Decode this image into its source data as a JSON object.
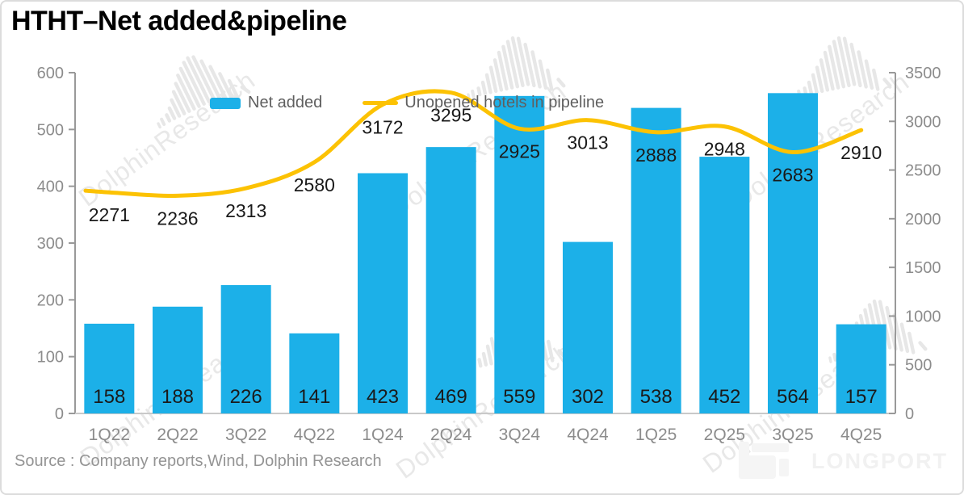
{
  "title": "HTHT–Net added&pipeline",
  "source": "Source : Company reports,Wind, Dolphin Research",
  "watermark_text": "DolphinResearch",
  "brand": "LONGPORT",
  "colors": {
    "bar": "#1CB0E8",
    "line": "#FCC203",
    "axis": "#999999",
    "baseline": "#c9c9c9",
    "label": "#1a1a1a",
    "axis_text": "#8c8c8c"
  },
  "legend": [
    {
      "label": "Net added",
      "type": "bar"
    },
    {
      "label": "Unopened hotels in pipeline",
      "type": "line"
    }
  ],
  "chart_data": {
    "type": "bar+line combo",
    "categories": [
      "1Q22",
      "2Q22",
      "3Q22",
      "4Q22",
      "1Q24",
      "2Q24",
      "3Q24",
      "4Q24",
      "1Q25",
      "2Q25",
      "3Q25",
      "4Q25"
    ],
    "series": [
      {
        "name": "Net added",
        "type": "bar",
        "axis": "left",
        "color": "#1CB0E8",
        "values": [
          158,
          188,
          226,
          141,
          423,
          469,
          559,
          302,
          538,
          452,
          564,
          157
        ]
      },
      {
        "name": "Unopened hotels in pipeline",
        "type": "line",
        "axis": "right",
        "color": "#FCC203",
        "smooth": true,
        "values": [
          2271,
          2236,
          2313,
          2580,
          3172,
          3295,
          2925,
          3013,
          2888,
          2948,
          2683,
          2910
        ]
      }
    ],
    "left_axis": {
      "min": 0,
      "max": 600,
      "ticks": [
        0,
        100,
        200,
        300,
        400,
        500,
        600
      ]
    },
    "right_axis": {
      "min": 0,
      "max": 3500,
      "ticks": [
        0,
        500,
        1000,
        1500,
        2000,
        2500,
        3000,
        3500
      ]
    },
    "grid": false,
    "legend_position": "top-center",
    "data_labels": "shown for both series"
  }
}
